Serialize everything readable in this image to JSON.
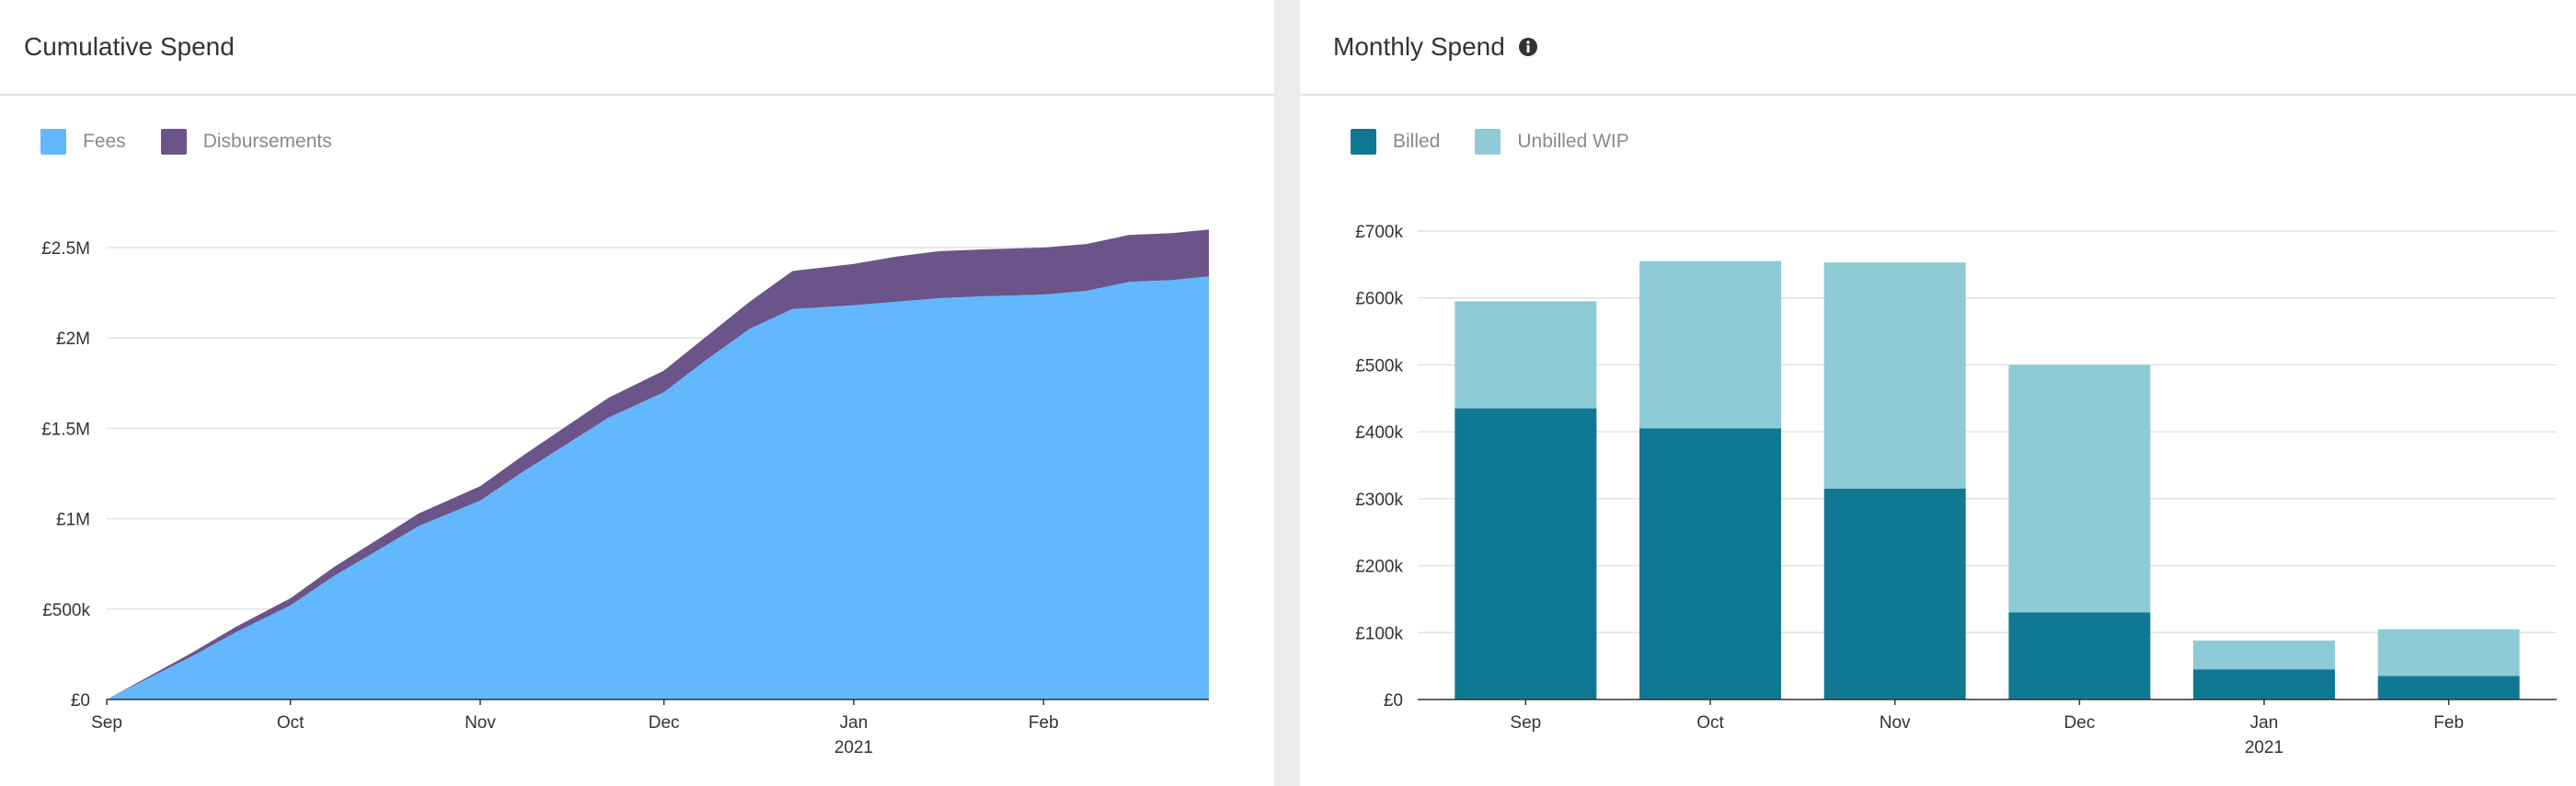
{
  "panels": {
    "cumulative": {
      "title": "Cumulative Spend",
      "legend": [
        {
          "label": "Fees",
          "color": "#63b7fd"
        },
        {
          "label": "Disbursements",
          "color": "#6a5489"
        }
      ]
    },
    "monthly": {
      "title": "Monthly Spend",
      "info_icon": "info-icon",
      "legend": [
        {
          "label": "Billed",
          "color": "#107893"
        },
        {
          "label": "Unbilled WIP",
          "color": "#8ecbd6"
        }
      ]
    }
  },
  "chart_data": [
    {
      "type": "area",
      "stacked": true,
      "x_axis": {
        "type": "date",
        "range": [
          "2020-09-01",
          "2021-02-28"
        ],
        "tick_labels": [
          "Sep",
          "Oct",
          "Nov",
          "Dec",
          "Jan",
          "Feb"
        ],
        "tick_dates": [
          "2020-09-01",
          "2020-10-01",
          "2020-11-01",
          "2020-12-01",
          "2021-01-01",
          "2021-02-01"
        ],
        "year_label": "2021"
      },
      "y_axis": {
        "range": [
          0,
          2500000
        ],
        "ticks": [
          0,
          500000,
          1000000,
          1500000,
          2000000,
          2500000
        ],
        "tick_labels": [
          "£0",
          "£500k",
          "£1M",
          "£1.5M",
          "£2M",
          "£2.5M"
        ]
      },
      "grid": true,
      "x": [
        "2020-09-01",
        "2020-09-08",
        "2020-09-15",
        "2020-09-22",
        "2020-10-01",
        "2020-10-08",
        "2020-10-15",
        "2020-10-22",
        "2020-11-01",
        "2020-11-08",
        "2020-11-15",
        "2020-11-22",
        "2020-12-01",
        "2020-12-08",
        "2020-12-15",
        "2020-12-22",
        "2021-01-01",
        "2021-01-08",
        "2021-01-15",
        "2021-01-22",
        "2021-02-01",
        "2021-02-08",
        "2021-02-15",
        "2021-02-22",
        "2021-02-28"
      ],
      "series": [
        {
          "name": "Fees",
          "values": [
            0,
            120000,
            240000,
            370000,
            520000,
            680000,
            820000,
            960000,
            1100000,
            1260000,
            1410000,
            1560000,
            1700000,
            1880000,
            2050000,
            2160000,
            2180000,
            2200000,
            2220000,
            2230000,
            2240000,
            2260000,
            2310000,
            2320000,
            2340000
          ]
        },
        {
          "name": "Disbursements",
          "values": [
            0,
            10000,
            20000,
            30000,
            40000,
            50000,
            60000,
            70000,
            80000,
            90000,
            100000,
            110000,
            120000,
            130000,
            150000,
            210000,
            230000,
            250000,
            260000,
            260000,
            260000,
            260000,
            260000,
            260000,
            260000
          ]
        }
      ]
    },
    {
      "type": "bar",
      "stacked": true,
      "categories": [
        "Sep",
        "Oct",
        "Nov",
        "Dec",
        "Jan",
        "Feb"
      ],
      "year_label": "2021",
      "y_axis": {
        "range": [
          0,
          700000
        ],
        "ticks": [
          0,
          100000,
          200000,
          300000,
          400000,
          500000,
          600000,
          700000
        ],
        "tick_labels": [
          "£0",
          "£100k",
          "£200k",
          "£300k",
          "£400k",
          "£500k",
          "£600k",
          "£700k"
        ]
      },
      "grid": true,
      "series": [
        {
          "name": "Billed",
          "values": [
            435000,
            405000,
            315000,
            130000,
            45000,
            35000
          ]
        },
        {
          "name": "Unbilled WIP",
          "values": [
            160000,
            250000,
            338000,
            370000,
            43000,
            70000
          ]
        }
      ]
    }
  ]
}
